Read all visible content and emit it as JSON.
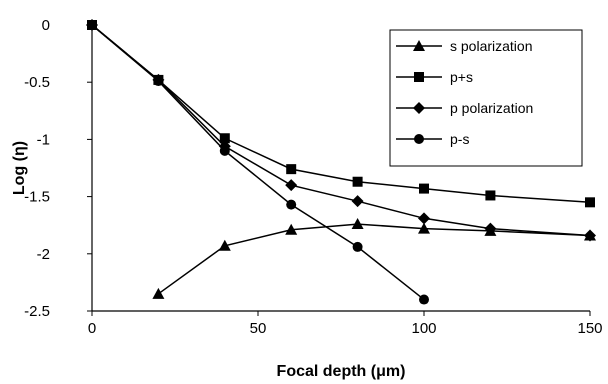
{
  "chart_data": {
    "type": "line",
    "xlabel": "Focal depth (μm)",
    "ylabel": "Log (η)",
    "xlim": [
      0,
      150
    ],
    "ylim": [
      -2.5,
      0
    ],
    "x_ticks": [
      "0",
      "50",
      "100",
      "150"
    ],
    "y_ticks": [
      "0",
      "-0.5",
      "-1",
      "-1.5",
      "-2",
      "-2.5"
    ],
    "grid": false,
    "legend_position": "top-right",
    "series": [
      {
        "name": "s polarization",
        "marker": "triangle",
        "points": [
          [
            20,
            -2.35
          ],
          [
            40,
            -1.93
          ],
          [
            60,
            -1.79
          ],
          [
            80,
            -1.74
          ],
          [
            100,
            -1.78
          ],
          [
            120,
            -1.8
          ],
          [
            150,
            -1.84
          ]
        ]
      },
      {
        "name": "p+s",
        "marker": "square",
        "points": [
          [
            0,
            0
          ],
          [
            20,
            -0.48
          ],
          [
            40,
            -0.99
          ],
          [
            60,
            -1.26
          ],
          [
            80,
            -1.37
          ],
          [
            100,
            -1.43
          ],
          [
            120,
            -1.49
          ],
          [
            150,
            -1.55
          ]
        ]
      },
      {
        "name": "p polarization",
        "marker": "diamond",
        "points": [
          [
            0,
            0
          ],
          [
            20,
            -0.48
          ],
          [
            40,
            -1.06
          ],
          [
            60,
            -1.4
          ],
          [
            80,
            -1.54
          ],
          [
            100,
            -1.69
          ],
          [
            120,
            -1.78
          ],
          [
            150,
            -1.84
          ]
        ]
      },
      {
        "name": "p-s",
        "marker": "circle",
        "points": [
          [
            0,
            0
          ],
          [
            20,
            -0.49
          ],
          [
            40,
            -1.1
          ],
          [
            60,
            -1.57
          ],
          [
            80,
            -1.94
          ],
          [
            100,
            -2.4
          ]
        ]
      }
    ],
    "colors": {
      "line": "#000000",
      "marker": "#000000"
    }
  }
}
